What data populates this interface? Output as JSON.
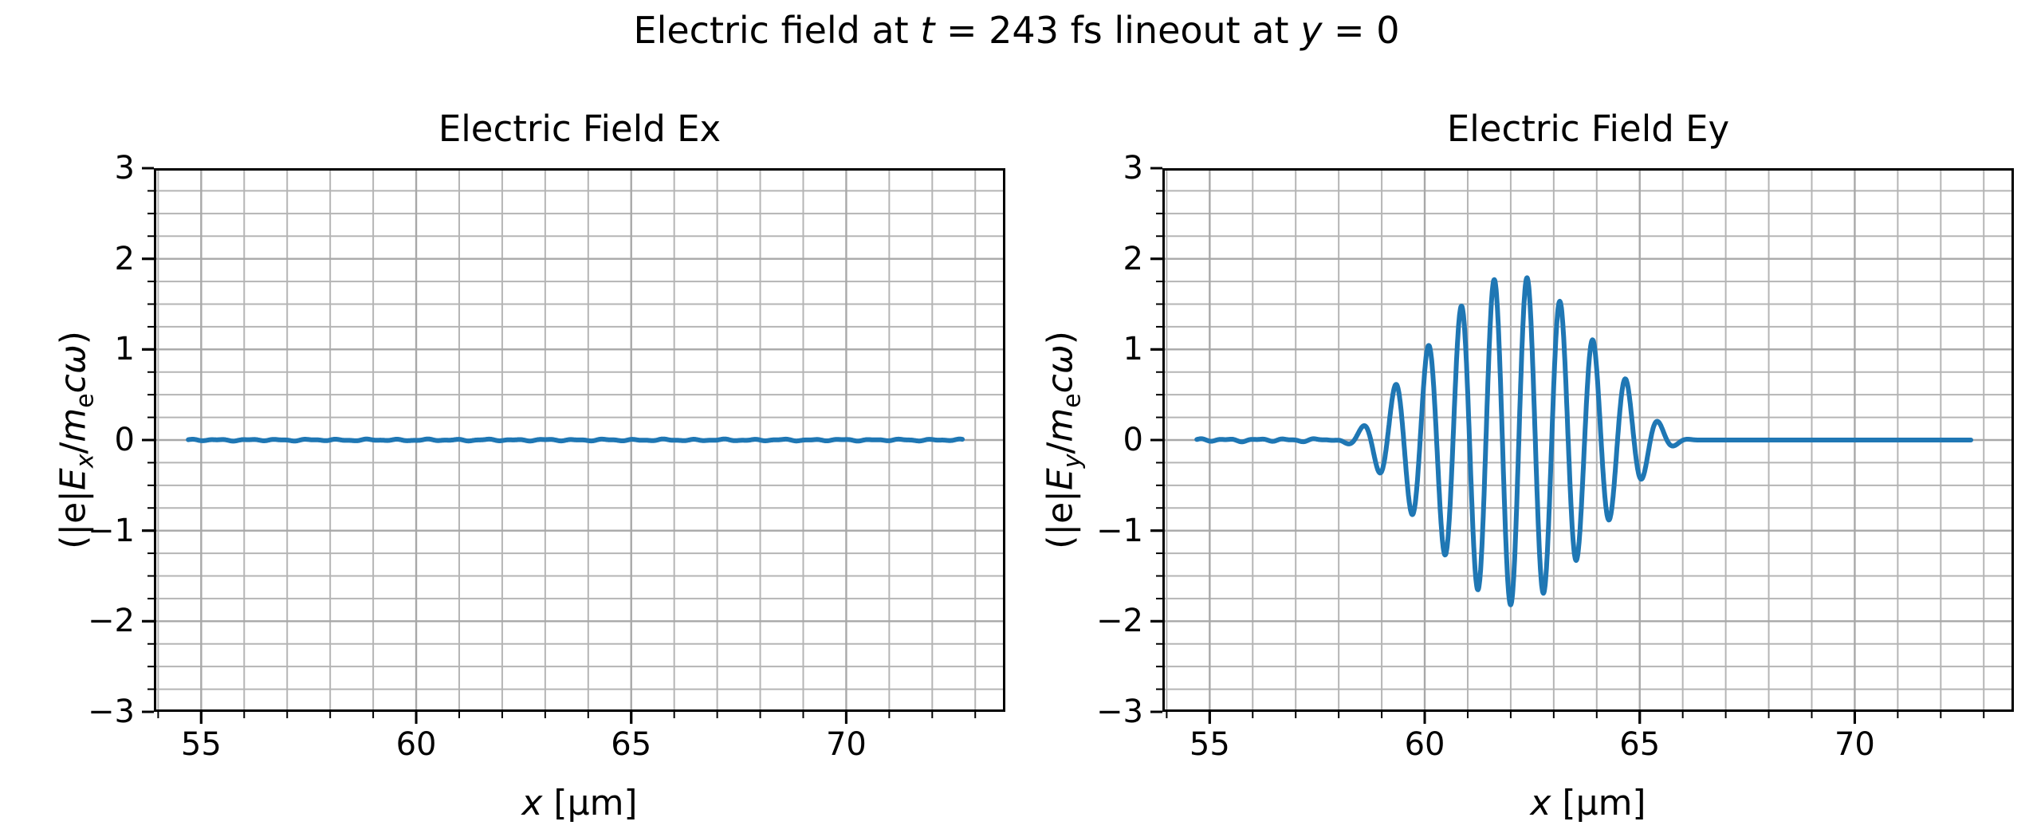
{
  "figure": {
    "suptitle_parts": [
      {
        "t": "Electric field at "
      },
      {
        "t": "t",
        "i": 1
      },
      {
        "t": " = 243 fs lineout at "
      },
      {
        "t": "y",
        "i": 1
      },
      {
        "t": " = 0"
      }
    ]
  },
  "colors": {
    "line": "#1f77b4",
    "grid_minor": "#b5b5b5",
    "grid_major": "#a8a8a8",
    "spine": "#000000",
    "tick": "#000000",
    "text": "#000000",
    "background": "#ffffff"
  },
  "chart_data": [
    {
      "type": "line",
      "id": "ex",
      "title": "Electric Field Ex",
      "xlabel_parts": [
        {
          "t": "x",
          "i": 1
        },
        {
          "t": " [µm]"
        }
      ],
      "ylabel_parts": [
        {
          "t": "(|e|"
        },
        {
          "t": "E",
          "i": 1
        },
        {
          "t": "x",
          "i": 1,
          "s": 1
        },
        {
          "t": "/"
        },
        {
          "t": "m",
          "i": 1
        },
        {
          "t": "e",
          "s": 1
        },
        {
          "t": "c",
          "i": 1
        },
        {
          "t": "ω",
          "i": 1
        },
        {
          "t": ")"
        }
      ],
      "xlim": [
        53.9,
        73.7
      ],
      "ylim": [
        -3,
        3
      ],
      "xticks": [
        55,
        60,
        65,
        70
      ],
      "yticks": [
        -3,
        -2,
        -1,
        0,
        1,
        2,
        3
      ],
      "minor_x_step": 1,
      "minor_y_step": 0.25,
      "grid": "both",
      "legend": "none",
      "series": [
        {
          "name": "Ex",
          "color": "#1f77b4",
          "model": {
            "kind": "flat",
            "x_start": 54.7,
            "x_end": 72.7,
            "value": 0,
            "noise_amplitude": 0.012
          }
        }
      ]
    },
    {
      "type": "line",
      "id": "ey",
      "title": "Electric Field Ey",
      "xlabel_parts": [
        {
          "t": "x",
          "i": 1
        },
        {
          "t": " [µm]"
        }
      ],
      "ylabel_parts": [
        {
          "t": "(|e|"
        },
        {
          "t": "E",
          "i": 1
        },
        {
          "t": "y",
          "i": 1,
          "s": 1
        },
        {
          "t": "/"
        },
        {
          "t": "m",
          "i": 1
        },
        {
          "t": "e",
          "s": 1
        },
        {
          "t": "c",
          "i": 1
        },
        {
          "t": "ω",
          "i": 1
        },
        {
          "t": ")"
        }
      ],
      "xlim": [
        53.9,
        73.7
      ],
      "ylim": [
        -3,
        3
      ],
      "xticks": [
        55,
        60,
        65,
        70
      ],
      "yticks": [
        -3,
        -2,
        -1,
        0,
        1,
        2,
        3
      ],
      "minor_x_step": 1,
      "minor_y_step": 0.25,
      "grid": "both",
      "legend": "none",
      "series": [
        {
          "name": "Ey",
          "color": "#1f77b4",
          "model": {
            "kind": "wave_packet",
            "x_start": 54.7,
            "x_end": 72.7,
            "center": 62.05,
            "peak_amplitude": 1.82,
            "sigma": 1.86,
            "wavelength": 0.765,
            "carrier_peak_x": 62.38,
            "taper_start": 2.6,
            "taper_end": 4.35,
            "noise_amplitude": 0.02,
            "noise_fade": [
              57.6,
              58.25
            ]
          },
          "extrema_readings": [
            [
              58.2,
              -0.07
            ],
            [
              58.55,
              0.22
            ],
            [
              58.95,
              -0.4
            ],
            [
              59.35,
              0.6
            ],
            [
              59.72,
              -0.82
            ],
            [
              60.1,
              1.05
            ],
            [
              60.48,
              -1.29
            ],
            [
              60.86,
              1.5
            ],
            [
              61.24,
              -1.65
            ],
            [
              61.62,
              1.78
            ],
            [
              62.0,
              -1.83
            ],
            [
              62.38,
              1.78
            ],
            [
              62.76,
              -1.72
            ],
            [
              63.14,
              1.51
            ],
            [
              63.52,
              -1.36
            ],
            [
              63.9,
              1.1
            ],
            [
              64.28,
              -0.89
            ],
            [
              64.66,
              0.6
            ],
            [
              65.04,
              -0.38
            ],
            [
              65.42,
              0.22
            ],
            [
              65.78,
              -0.12
            ],
            [
              66.4,
              0.0
            ]
          ]
        }
      ]
    }
  ]
}
